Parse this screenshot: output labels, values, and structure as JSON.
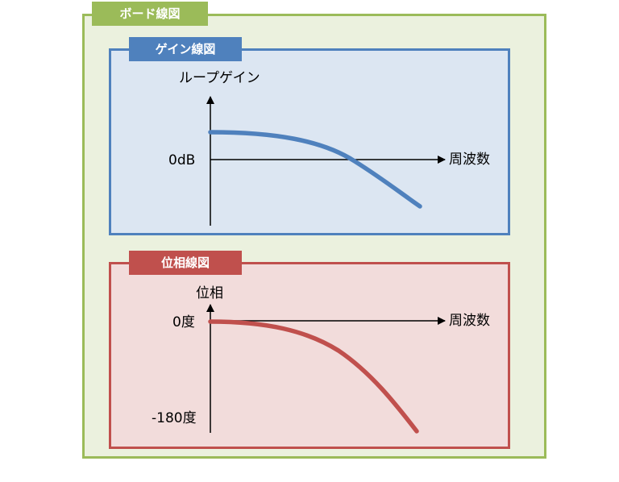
{
  "title": "ボード線図",
  "gain_plot": {
    "title": "ゲイン線図",
    "y_label": "ループゲイン",
    "x_label": "周波数",
    "ref_label": "0dB",
    "curve_color": "#4f81bd",
    "frame_color": "#4f81bd",
    "fill_color": "#dce6f2"
  },
  "phase_plot": {
    "title": "位相線図",
    "y_label": "位相",
    "x_label": "周波数",
    "ref_label": "0度",
    "bottom_label": "-180度",
    "curve_color": "#c0504d",
    "frame_color": "#c0504d",
    "fill_color": "#f2dcdb"
  },
  "outer_frame": {
    "frame_color": "#9bbb59",
    "fill_color": "#ebf1de"
  }
}
